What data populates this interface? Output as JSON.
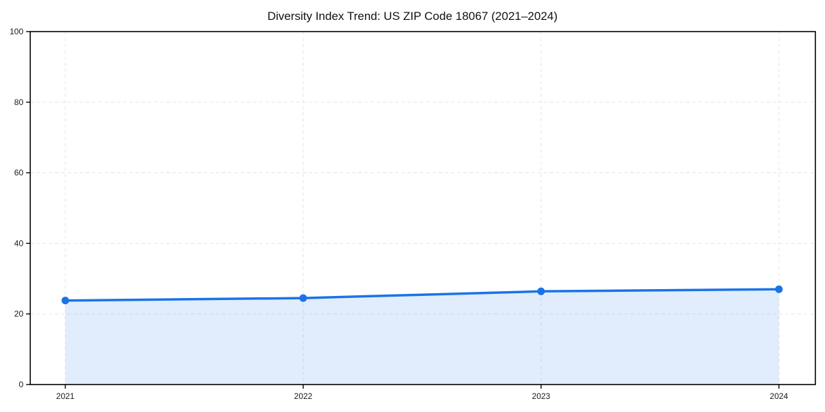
{
  "chart_data": {
    "type": "line",
    "title": "Diversity Index Trend: US ZIP Code 18067 (2021–2024)",
    "categories": [
      "2021",
      "2022",
      "2023",
      "2024"
    ],
    "series": [
      {
        "name": "Diversity Index",
        "values": [
          23.8,
          24.5,
          26.4,
          27.0
        ]
      }
    ],
    "xlabel": "",
    "ylabel": "",
    "ylim": [
      0,
      100
    ],
    "ytick_step": 20,
    "grid": true,
    "grid_style": "dashed",
    "legend_position": "none",
    "area_fill": true,
    "markers": true,
    "colors": {
      "line": "#1a73e8",
      "marker": "#1a73e8",
      "fill": "#1a73e8",
      "fill_opacity": 0.13,
      "grid": "#e5e5e5",
      "axis": "#000000",
      "tick_text": "#1a1a1a",
      "background": "#ffffff"
    }
  }
}
